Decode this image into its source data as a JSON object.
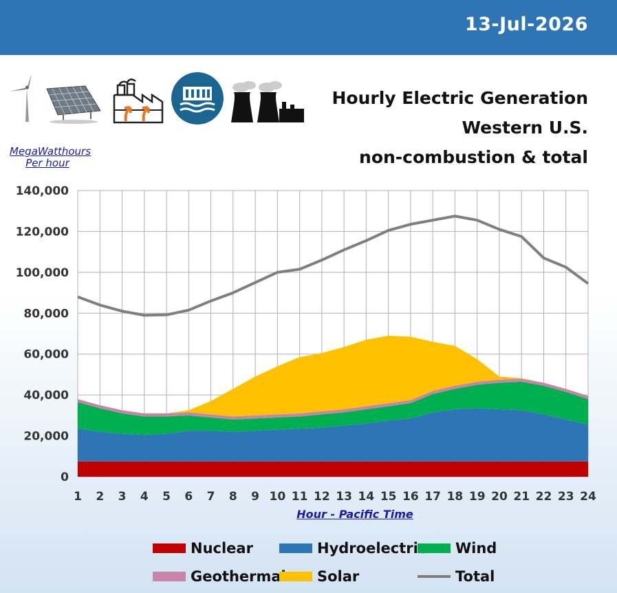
{
  "header": {
    "date": "13-Jul-2026"
  },
  "title_lines": [
    "Hourly Electric Generation",
    "Western U.S.",
    "non-combustion & total"
  ],
  "units_label": [
    "MegaWatthours",
    "Per hour"
  ],
  "icons": [
    "wind-turbine-icon",
    "solar-panel-icon",
    "geothermal-plant-icon",
    "hydro-dam-icon",
    "nuclear-plant-icon"
  ],
  "colors": {
    "header": "#2e75b6",
    "nuclear": "#c00000",
    "hydro": "#2e75b6",
    "wind": "#00b050",
    "geothermal": "#c983a8",
    "solar": "#ffc000",
    "total": "#7f7f7f"
  },
  "chart_data": {
    "type": "area",
    "xlabel": "Hour - Pacific Time",
    "ylabel": "MegaWatthours Per hour",
    "x": [
      1,
      2,
      3,
      4,
      5,
      6,
      7,
      8,
      9,
      10,
      11,
      12,
      13,
      14,
      15,
      16,
      17,
      18,
      19,
      20,
      21,
      22,
      23,
      24
    ],
    "xlim": [
      1,
      24
    ],
    "ylim": [
      0,
      140000
    ],
    "yticks": [
      0,
      20000,
      40000,
      60000,
      80000,
      100000,
      120000,
      140000
    ],
    "ytick_labels": [
      "0",
      "20,000",
      "40,000",
      "60,000",
      "80,000",
      "100,000",
      "120,000",
      "140,000"
    ],
    "grid": true,
    "stacked": true,
    "series": [
      {
        "name": "Nuclear",
        "values": [
          7500,
          7500,
          7500,
          7500,
          7500,
          7500,
          7500,
          7500,
          7500,
          7500,
          7500,
          7500,
          7500,
          7500,
          7500,
          7500,
          7500,
          7500,
          7500,
          7500,
          7500,
          7500,
          7500,
          7500
        ]
      },
      {
        "name": "Hydroelectric",
        "values": [
          16000,
          14500,
          13500,
          13000,
          13500,
          15000,
          15000,
          14500,
          15000,
          15500,
          16000,
          16500,
          17500,
          18500,
          20000,
          21000,
          24000,
          25500,
          26000,
          25500,
          25000,
          23000,
          20500,
          18000
        ]
      },
      {
        "name": "Wind",
        "values": [
          13000,
          11500,
          10000,
          9000,
          8500,
          7500,
          6500,
          6000,
          6000,
          6000,
          6000,
          6500,
          6500,
          7000,
          7000,
          7500,
          9000,
          10000,
          11500,
          13000,
          14000,
          14000,
          13500,
          12500
        ]
      },
      {
        "name": "Geothermal",
        "values": [
          1500,
          1500,
          1500,
          1500,
          1500,
          1500,
          1500,
          1500,
          1500,
          1500,
          1500,
          1500,
          1500,
          1500,
          1500,
          1500,
          1500,
          1500,
          1500,
          1500,
          1500,
          1500,
          1500,
          1500
        ]
      },
      {
        "name": "Solar",
        "values": [
          0,
          0,
          0,
          0,
          0,
          1000,
          6500,
          13500,
          19000,
          23500,
          27500,
          28500,
          30500,
          32500,
          33000,
          31000,
          24000,
          19500,
          11000,
          1500,
          200,
          0,
          0,
          0
        ]
      }
    ],
    "total": {
      "name": "Total",
      "values": [
        88000,
        84000,
        81000,
        79000,
        79200,
        81500,
        86000,
        90000,
        95000,
        100000,
        101500,
        106000,
        111000,
        115500,
        120500,
        123500,
        125500,
        127500,
        125500,
        121000,
        117500,
        107000,
        102500,
        94500
      ]
    },
    "legend": [
      "Nuclear",
      "Hydroelectric",
      "Wind",
      "Geothermal",
      "Solar",
      "Total"
    ],
    "legend_position": "bottom"
  }
}
